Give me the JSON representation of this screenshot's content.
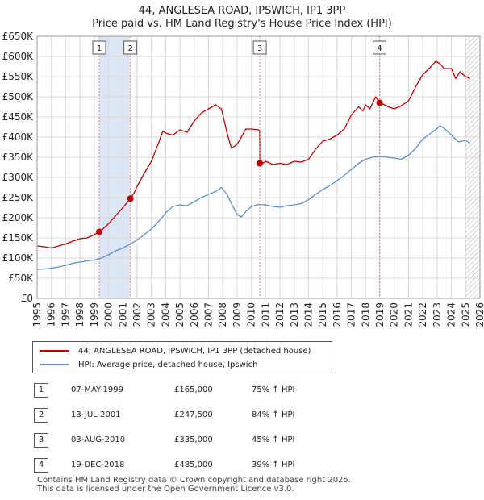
{
  "title_line1": "44, ANGLESEA ROAD, IPSWICH, IP1 3PP",
  "title_line2": "Price paid vs. HM Land Registry's House Price Index (HPI)",
  "legend": {
    "property": "44, ANGLESEA ROAD, IPSWICH, IP1 3PP (detached house)",
    "hpi": "HPI: Average price, detached house, Ipswich"
  },
  "colors": {
    "property": "#c00000",
    "hpi": "#5b8fd0",
    "highlight": "#dde6f5",
    "grid": "#d8d8d8",
    "vline": "#e08080"
  },
  "sales": [
    {
      "num": "1",
      "date": "07-MAY-1999",
      "price": "£165,000",
      "hpi": "75% ↑ HPI"
    },
    {
      "num": "2",
      "date": "13-JUL-2001",
      "price": "£247,500",
      "hpi": "84% ↑ HPI"
    },
    {
      "num": "3",
      "date": "03-AUG-2010",
      "price": "£335,000",
      "hpi": "45% ↑ HPI"
    },
    {
      "num": "4",
      "date": "19-DEC-2018",
      "price": "£485,000",
      "hpi": "39% ↑ HPI"
    }
  ],
  "footer": {
    "line1": "Contains HM Land Registry data © Crown copyright and database right 2025.",
    "line2": "This data is licensed under the Open Government Licence v3.0."
  },
  "chart_data": {
    "type": "line",
    "title": "44, ANGLESEA ROAD, IPSWICH, IP1 3PP",
    "subtitle": "Price paid vs. HM Land Registry's House Price Index (HPI)",
    "xlim": [
      1995,
      2026
    ],
    "ylim": [
      0,
      650000
    ],
    "x_ticks": [
      1995,
      1996,
      1997,
      1998,
      1999,
      2000,
      2001,
      2002,
      2003,
      2004,
      2005,
      2006,
      2007,
      2008,
      2009,
      2010,
      2011,
      2012,
      2013,
      2014,
      2015,
      2016,
      2017,
      2018,
      2019,
      2020,
      2021,
      2022,
      2023,
      2024,
      2025,
      2026
    ],
    "y_ticks": [
      0,
      50000,
      100000,
      150000,
      200000,
      250000,
      300000,
      350000,
      400000,
      450000,
      500000,
      550000,
      600000,
      650000
    ],
    "y_tick_labels": [
      "£0",
      "£50K",
      "£100K",
      "£150K",
      "£200K",
      "£250K",
      "£300K",
      "£350K",
      "£400K",
      "£450K",
      "£500K",
      "£550K",
      "£600K",
      "£650K"
    ],
    "grid": true,
    "highlight_ranges": [
      [
        1999.35,
        2001.53
      ]
    ],
    "future_hatch_from": 2025.0,
    "sale_markers": [
      {
        "label": "1",
        "x": 1999.35,
        "y": 165000
      },
      {
        "label": "2",
        "x": 2001.53,
        "y": 247500
      },
      {
        "label": "3",
        "x": 2010.59,
        "y": 335000
      },
      {
        "label": "4",
        "x": 2018.97,
        "y": 485000
      }
    ],
    "series": [
      {
        "name": "44, ANGLESEA ROAD, IPSWICH, IP1 3PP (detached house)",
        "x": [
          1995.0,
          1995.5,
          1996.0,
          1996.5,
          1997.0,
          1997.5,
          1998.0,
          1998.5,
          1999.0,
          1999.35,
          1999.6,
          2000.0,
          2000.5,
          2001.0,
          2001.53,
          2001.8,
          2002.0,
          2002.5,
          2003.0,
          2003.5,
          2003.8,
          2004.0,
          2004.5,
          2005.0,
          2005.5,
          2006.0,
          2006.5,
          2007.0,
          2007.5,
          2007.9,
          2008.3,
          2008.6,
          2009.0,
          2009.3,
          2009.6,
          2010.0,
          2010.5,
          2010.58,
          2010.59,
          2010.8,
          2011.0,
          2011.5,
          2012.0,
          2012.5,
          2013.0,
          2013.5,
          2014.0,
          2014.5,
          2015.0,
          2015.5,
          2016.0,
          2016.5,
          2017.0,
          2017.5,
          2017.8,
          2018.0,
          2018.3,
          2018.7,
          2018.97,
          2019.2,
          2019.6,
          2020.0,
          2020.5,
          2021.0,
          2021.5,
          2022.0,
          2022.5,
          2022.9,
          2023.2,
          2023.5,
          2024.0,
          2024.3,
          2024.6,
          2025.0,
          2025.3
        ],
        "y": [
          130000,
          128000,
          125000,
          130000,
          135000,
          142000,
          148000,
          150000,
          158000,
          165000,
          172000,
          185000,
          205000,
          225000,
          247500,
          262000,
          278000,
          310000,
          340000,
          385000,
          415000,
          410000,
          405000,
          418000,
          412000,
          440000,
          460000,
          470000,
          480000,
          470000,
          410000,
          372000,
          382000,
          400000,
          420000,
          420000,
          418000,
          415000,
          335000,
          335000,
          340000,
          332000,
          335000,
          332000,
          340000,
          338000,
          345000,
          370000,
          390000,
          395000,
          405000,
          420000,
          455000,
          475000,
          465000,
          480000,
          470000,
          500000,
          485000,
          482000,
          475000,
          470000,
          478000,
          490000,
          525000,
          555000,
          572000,
          588000,
          582000,
          570000,
          570000,
          545000,
          562000,
          550000,
          545000
        ]
      },
      {
        "name": "HPI: Average price, detached house, Ipswich",
        "x": [
          1995.0,
          1995.5,
          1996.0,
          1996.5,
          1997.0,
          1997.5,
          1998.0,
          1998.5,
          1999.0,
          1999.5,
          2000.0,
          2000.5,
          2001.0,
          2001.5,
          2002.0,
          2002.5,
          2003.0,
          2003.5,
          2004.0,
          2004.5,
          2005.0,
          2005.5,
          2006.0,
          2006.5,
          2007.0,
          2007.5,
          2007.9,
          2008.3,
          2008.6,
          2009.0,
          2009.3,
          2009.6,
          2010.0,
          2010.5,
          2011.0,
          2011.5,
          2012.0,
          2012.5,
          2013.0,
          2013.5,
          2014.0,
          2014.5,
          2015.0,
          2015.5,
          2016.0,
          2016.5,
          2017.0,
          2017.5,
          2018.0,
          2018.5,
          2019.0,
          2019.5,
          2020.0,
          2020.5,
          2021.0,
          2021.5,
          2022.0,
          2022.5,
          2022.9,
          2023.2,
          2023.5,
          2024.0,
          2024.5,
          2025.0,
          2025.3
        ],
        "y": [
          72000,
          73000,
          75000,
          78000,
          82000,
          87000,
          90000,
          93000,
          95000,
          100000,
          108000,
          118000,
          125000,
          134000,
          145000,
          158000,
          172000,
          190000,
          212000,
          228000,
          232000,
          230000,
          240000,
          250000,
          258000,
          265000,
          275000,
          258000,
          235000,
          208000,
          202000,
          215000,
          228000,
          233000,
          232000,
          228000,
          226000,
          230000,
          232000,
          235000,
          245000,
          258000,
          270000,
          280000,
          292000,
          305000,
          320000,
          335000,
          345000,
          350000,
          352000,
          350000,
          348000,
          345000,
          355000,
          372000,
          395000,
          408000,
          418000,
          428000,
          422000,
          405000,
          388000,
          392000,
          385000
        ]
      }
    ]
  }
}
